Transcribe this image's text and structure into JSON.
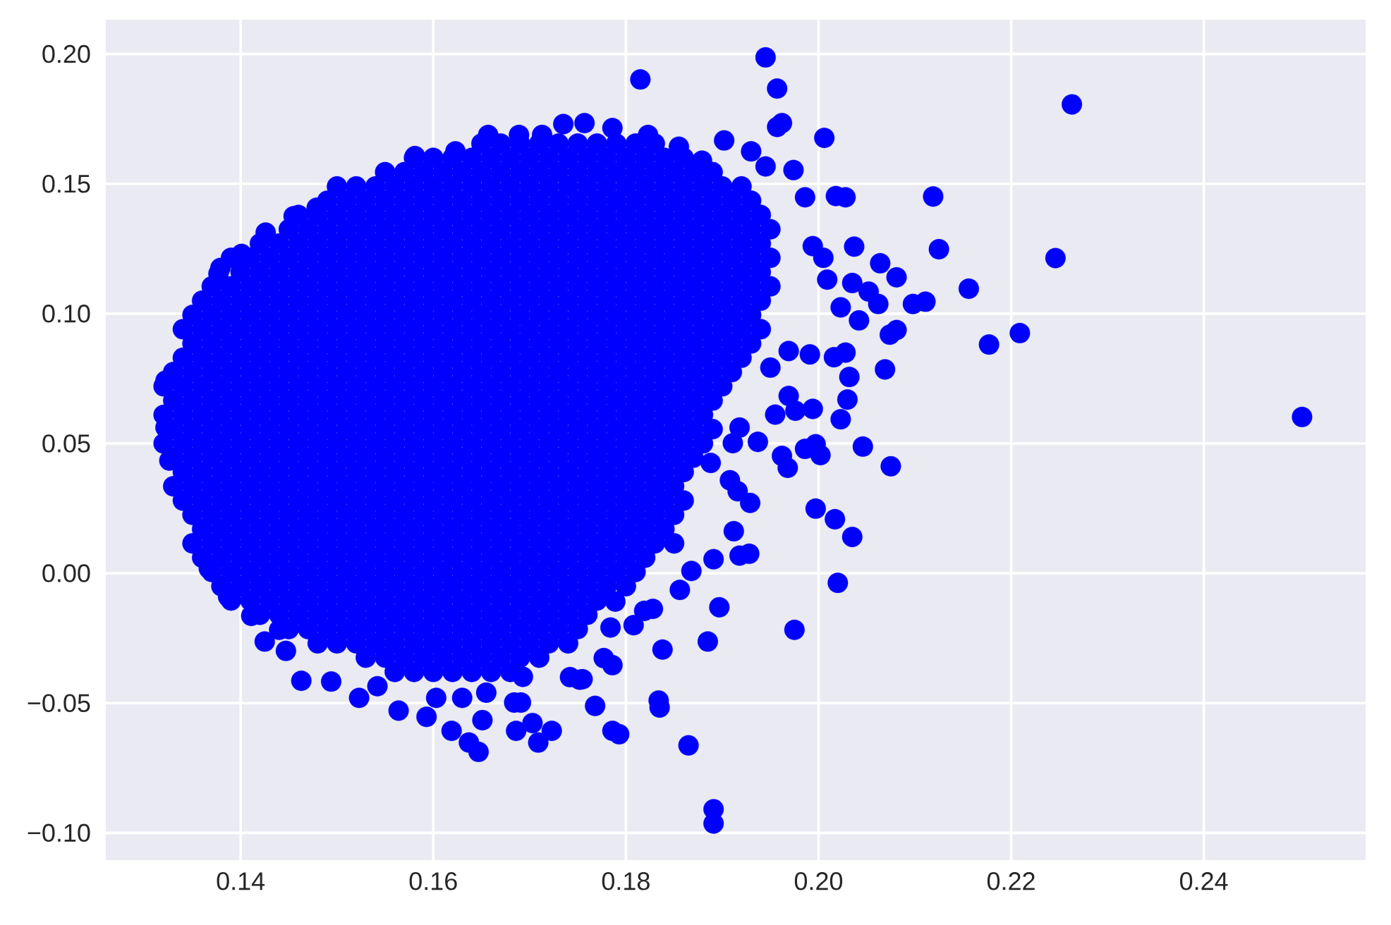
{
  "chart_data": {
    "type": "scatter",
    "color": "#0000ff",
    "marker": "circle",
    "grid": true,
    "xlim": [
      0.126,
      0.2568
    ],
    "ylim": [
      -0.1105,
      0.2132
    ],
    "xticks": [
      0.14,
      0.16,
      0.18,
      {
        "value": 0.2,
        "label": "0.20"
      },
      0.22,
      0.24
    ],
    "yticks": [
      {
        "value": -0.1,
        "label": "−0.10"
      },
      {
        "value": -0.05,
        "label": "−0.05"
      },
      {
        "value": 0,
        "label": "0.00"
      },
      0.05,
      {
        "value": 0.1,
        "label": "0.10"
      },
      0.15,
      {
        "value": 0.2,
        "label": "0.20"
      }
    ],
    "x": [
      0.156,
      0.158,
      0.16,
      0.162,
      0.164,
      0.166,
      0.168,
      0.153,
      0.155,
      0.157,
      0.159,
      0.161,
      0.163,
      0.165,
      0.167,
      0.169,
      0.171,
      0.148,
      0.15,
      0.152,
      0.154,
      0.156,
      0.158,
      0.16,
      0.162,
      0.164,
      0.166,
      0.168,
      0.17,
      0.172,
      0.174,
      0.145,
      0.147,
      0.149,
      0.151,
      0.153,
      0.155,
      0.157,
      0.159,
      0.161,
      0.163,
      0.165,
      0.167,
      0.169,
      0.171,
      0.173,
      0.175,
      0.142,
      0.144,
      0.146,
      0.148,
      0.15,
      0.152,
      0.154,
      0.156,
      0.158,
      0.16,
      0.162,
      0.164,
      0.166,
      0.168,
      0.17,
      0.172,
      0.174,
      0.176,
      0.139,
      0.141,
      0.143,
      0.145,
      0.147,
      0.149,
      0.151,
      0.153,
      0.155,
      0.157,
      0.159,
      0.161,
      0.163,
      0.165,
      0.167,
      0.169,
      0.171,
      0.173,
      0.175,
      0.177,
      0.138,
      0.14,
      0.142,
      0.144,
      0.146,
      0.148,
      0.15,
      0.152,
      0.154,
      0.156,
      0.158,
      0.16,
      0.162,
      0.164,
      0.166,
      0.168,
      0.17,
      0.172,
      0.174,
      0.176,
      0.178,
      0.18,
      0.137,
      0.139,
      0.141,
      0.143,
      0.145,
      0.147,
      0.149,
      0.151,
      0.153,
      0.155,
      0.157,
      0.159,
      0.161,
      0.163,
      0.165,
      0.167,
      0.169,
      0.171,
      0.173,
      0.175,
      0.177,
      0.179,
      0.181,
      0.136,
      0.138,
      0.14,
      0.142,
      0.144,
      0.146,
      0.148,
      0.15,
      0.152,
      0.154,
      0.156,
      0.158,
      0.16,
      0.162,
      0.164,
      0.166,
      0.168,
      0.17,
      0.172,
      0.174,
      0.176,
      0.178,
      0.18,
      0.182,
      0.135,
      0.137,
      0.139,
      0.141,
      0.143,
      0.145,
      0.147,
      0.149,
      0.151,
      0.153,
      0.155,
      0.157,
      0.159,
      0.161,
      0.163,
      0.165,
      0.167,
      0.169,
      0.171,
      0.173,
      0.175,
      0.177,
      0.179,
      0.181,
      0.183,
      0.185,
      0.136,
      0.138,
      0.14,
      0.142,
      0.144,
      0.146,
      0.148,
      0.15,
      0.152,
      0.154,
      0.156,
      0.158,
      0.16,
      0.162,
      0.164,
      0.166,
      0.168,
      0.17,
      0.172,
      0.174,
      0.176,
      0.178,
      0.18,
      0.182,
      0.184,
      0.135,
      0.137,
      0.139,
      0.141,
      0.143,
      0.145,
      0.147,
      0.149,
      0.151,
      0.153,
      0.155,
      0.157,
      0.159,
      0.161,
      0.163,
      0.165,
      0.167,
      0.169,
      0.171,
      0.173,
      0.175,
      0.177,
      0.179,
      0.181,
      0.183,
      0.185,
      0.134,
      0.136,
      0.138,
      0.14,
      0.142,
      0.144,
      0.146,
      0.148,
      0.15,
      0.152,
      0.154,
      0.156,
      0.158,
      0.16,
      0.162,
      0.164,
      0.166,
      0.168,
      0.17,
      0.172,
      0.174,
      0.176,
      0.178,
      0.18,
      0.182,
      0.184,
      0.186,
      0.133,
      0.135,
      0.137,
      0.139,
      0.141,
      0.143,
      0.145,
      0.147,
      0.149,
      0.151,
      0.153,
      0.155,
      0.157,
      0.159,
      0.161,
      0.163,
      0.165,
      0.167,
      0.169,
      0.171,
      0.173,
      0.175,
      0.177,
      0.179,
      0.181,
      0.183,
      0.185,
      0.134,
      0.136,
      0.138,
      0.14,
      0.142,
      0.144,
      0.146,
      0.148,
      0.15,
      0.152,
      0.154,
      0.156,
      0.158,
      0.16,
      0.162,
      0.164,
      0.166,
      0.168,
      0.17,
      0.172,
      0.174,
      0.176,
      0.178,
      0.18,
      0.182,
      0.184,
      0.186,
      0.133,
      0.135,
      0.137,
      0.139,
      0.141,
      0.143,
      0.145,
      0.147,
      0.149,
      0.151,
      0.153,
      0.155,
      0.157,
      0.159,
      0.161,
      0.163,
      0.165,
      0.167,
      0.169,
      0.171,
      0.173,
      0.175,
      0.177,
      0.179,
      0.181,
      0.183,
      0.185,
      0.187,
      0.132,
      0.134,
      0.136,
      0.138,
      0.14,
      0.142,
      0.144,
      0.146,
      0.148,
      0.15,
      0.152,
      0.154,
      0.156,
      0.158,
      0.16,
      0.162,
      0.164,
      0.166,
      0.168,
      0.17,
      0.172,
      0.174,
      0.176,
      0.178,
      0.18,
      0.182,
      0.184,
      0.186,
      0.188,
      0.133,
      0.135,
      0.137,
      0.139,
      0.141,
      0.143,
      0.145,
      0.147,
      0.149,
      0.151,
      0.153,
      0.155,
      0.157,
      0.159,
      0.161,
      0.163,
      0.165,
      0.167,
      0.169,
      0.171,
      0.173,
      0.175,
      0.177,
      0.179,
      0.181,
      0.183,
      0.185,
      0.187,
      0.189,
      0.132,
      0.134,
      0.136,
      0.138,
      0.14,
      0.142,
      0.144,
      0.146,
      0.148,
      0.15,
      0.152,
      0.154,
      0.156,
      0.158,
      0.16,
      0.162,
      0.164,
      0.166,
      0.168,
      0.17,
      0.172,
      0.174,
      0.176,
      0.178,
      0.18,
      0.182,
      0.184,
      0.186,
      0.188,
      0.133,
      0.135,
      0.137,
      0.139,
      0.141,
      0.143,
      0.145,
      0.147,
      0.149,
      0.151,
      0.153,
      0.155,
      0.157,
      0.159,
      0.161,
      0.163,
      0.165,
      0.167,
      0.169,
      0.171,
      0.173,
      0.175,
      0.177,
      0.179,
      0.181,
      0.183,
      0.185,
      0.187,
      0.189,
      0.132,
      0.134,
      0.136,
      0.138,
      0.14,
      0.142,
      0.144,
      0.146,
      0.148,
      0.15,
      0.152,
      0.154,
      0.156,
      0.158,
      0.16,
      0.162,
      0.164,
      0.166,
      0.168,
      0.17,
      0.172,
      0.174,
      0.176,
      0.178,
      0.18,
      0.182,
      0.184,
      0.186,
      0.188,
      0.19,
      0.133,
      0.135,
      0.137,
      0.139,
      0.141,
      0.143,
      0.145,
      0.147,
      0.149,
      0.151,
      0.153,
      0.155,
      0.157,
      0.159,
      0.161,
      0.163,
      0.165,
      0.167,
      0.169,
      0.171,
      0.173,
      0.175,
      0.177,
      0.179,
      0.181,
      0.183,
      0.185,
      0.187,
      0.189,
      0.191,
      0.134,
      0.136,
      0.138,
      0.14,
      0.142,
      0.144,
      0.146,
      0.148,
      0.15,
      0.152,
      0.154,
      0.156,
      0.158,
      0.16,
      0.162,
      0.164,
      0.166,
      0.168,
      0.17,
      0.172,
      0.174,
      0.176,
      0.178,
      0.18,
      0.182,
      0.184,
      0.186,
      0.188,
      0.19,
      0.192,
      0.135,
      0.137,
      0.139,
      0.141,
      0.143,
      0.145,
      0.147,
      0.149,
      0.151,
      0.153,
      0.155,
      0.157,
      0.159,
      0.161,
      0.163,
      0.165,
      0.167,
      0.169,
      0.171,
      0.173,
      0.175,
      0.177,
      0.179,
      0.181,
      0.183,
      0.185,
      0.187,
      0.189,
      0.191,
      0.193,
      0.134,
      0.136,
      0.138,
      0.14,
      0.142,
      0.144,
      0.146,
      0.148,
      0.15,
      0.152,
      0.154,
      0.156,
      0.158,
      0.16,
      0.162,
      0.164,
      0.166,
      0.168,
      0.17,
      0.172,
      0.174,
      0.176,
      0.178,
      0.18,
      0.182,
      0.184,
      0.186,
      0.188,
      0.19,
      0.192,
      0.194,
      0.135,
      0.137,
      0.139,
      0.141,
      0.143,
      0.145,
      0.147,
      0.149,
      0.151,
      0.153,
      0.155,
      0.157,
      0.159,
      0.161,
      0.163,
      0.165,
      0.167,
      0.169,
      0.171,
      0.173,
      0.175,
      0.177,
      0.179,
      0.181,
      0.183,
      0.185,
      0.187,
      0.189,
      0.191,
      0.193,
      0.136,
      0.138,
      0.14,
      0.142,
      0.144,
      0.146,
      0.148,
      0.15,
      0.152,
      0.154,
      0.156,
      0.158,
      0.16,
      0.162,
      0.164,
      0.166,
      0.168,
      0.17,
      0.172,
      0.174,
      0.176,
      0.178,
      0.18,
      0.182,
      0.184,
      0.186,
      0.188,
      0.19,
      0.192,
      0.194,
      0.137,
      0.139,
      0.141,
      0.143,
      0.145,
      0.147,
      0.149,
      0.151,
      0.153,
      0.155,
      0.157,
      0.159,
      0.161,
      0.163,
      0.165,
      0.167,
      0.169,
      0.171,
      0.173,
      0.175,
      0.177,
      0.179,
      0.181,
      0.183,
      0.185,
      0.187,
      0.189,
      0.191,
      0.193,
      0.195,
      0.14,
      0.142,
      0.144,
      0.146,
      0.148,
      0.15,
      0.152,
      0.154,
      0.156,
      0.158,
      0.16,
      0.162,
      0.164,
      0.166,
      0.168,
      0.17,
      0.172,
      0.174,
      0.176,
      0.178,
      0.18,
      0.182,
      0.184,
      0.186,
      0.188,
      0.19,
      0.192,
      0.194,
      0.139,
      0.141,
      0.143,
      0.145,
      0.147,
      0.149,
      0.151,
      0.153,
      0.155,
      0.157,
      0.159,
      0.161,
      0.163,
      0.165,
      0.167,
      0.169,
      0.171,
      0.173,
      0.175,
      0.177,
      0.179,
      0.181,
      0.183,
      0.185,
      0.187,
      0.189,
      0.191,
      0.193,
      0.195,
      0.142,
      0.144,
      0.146,
      0.148,
      0.15,
      0.152,
      0.154,
      0.156,
      0.158,
      0.16,
      0.162,
      0.164,
      0.166,
      0.168,
      0.17,
      0.172,
      0.174,
      0.176,
      0.178,
      0.18,
      0.182,
      0.184,
      0.186,
      0.188,
      0.19,
      0.192,
      0.194,
      0.145,
      0.147,
      0.149,
      0.151,
      0.153,
      0.155,
      0.157,
      0.159,
      0.161,
      0.163,
      0.165,
      0.167,
      0.169,
      0.171,
      0.173,
      0.175,
      0.177,
      0.179,
      0.181,
      0.183,
      0.185,
      0.187,
      0.189,
      0.191,
      0.193,
      0.195,
      0.146,
      0.148,
      0.15,
      0.152,
      0.154,
      0.156,
      0.158,
      0.16,
      0.162,
      0.164,
      0.166,
      0.168,
      0.17,
      0.172,
      0.174,
      0.176,
      0.178,
      0.18,
      0.182,
      0.184,
      0.186,
      0.188,
      0.19,
      0.192,
      0.194,
      0.149,
      0.151,
      0.153,
      0.155,
      0.157,
      0.159,
      0.161,
      0.163,
      0.165,
      0.167,
      0.169,
      0.171,
      0.173,
      0.175,
      0.177,
      0.179,
      0.181,
      0.183,
      0.185,
      0.187,
      0.189,
      0.191,
      0.193,
      0.15,
      0.152,
      0.154,
      0.156,
      0.158,
      0.16,
      0.162,
      0.164,
      0.166,
      0.168,
      0.17,
      0.172,
      0.174,
      0.176,
      0.178,
      0.18,
      0.182,
      0.184,
      0.186,
      0.188,
      0.19,
      0.192,
      0.155,
      0.157,
      0.159,
      0.161,
      0.163,
      0.165,
      0.167,
      0.169,
      0.171,
      0.173,
      0.175,
      0.177,
      0.179,
      0.181,
      0.183,
      0.185,
      0.187,
      0.189,
      0.158,
      0.16,
      0.162,
      0.164,
      0.166,
      0.168,
      0.17,
      0.172,
      0.174,
      0.176,
      0.178,
      0.18,
      0.182,
      0.184,
      0.186,
      0.165,
      0.167,
      0.169,
      0.171,
      0.173,
      0.175,
      0.177,
      0.179,
      0.181,
      0.183,
      0.1945,
      0.1815,
      0.1957,
      0.1957,
      0.1962,
      0.2006,
      0.2263,
      0.1902,
      0.1974,
      0.1945,
      0.1986,
      0.2018,
      0.2028,
      0.2119,
      0.2125,
      0.2246,
      0.2037,
      0.2064,
      0.2081,
      0.2009,
      0.2035,
      0.2052,
      0.2098,
      0.2111,
      0.2156,
      0.2023,
      0.2062,
      0.2042,
      0.2081,
      0.2074,
      0.2209,
      0.2177,
      0.2069,
      0.1991,
      0.2016,
      0.2028,
      0.2032,
      0.203,
      0.2023,
      0.2502,
      0.1994,
      0.1976,
      0.1955,
      0.1969,
      0.1969,
      0.195,
      0.2046,
      0.2075,
      0.1962,
      0.1968,
      0.1986,
      0.1997,
      0.2002,
      0.1937,
      0.1918,
      0.1911,
      0.1888,
      0.1908,
      0.1916,
      0.1929,
      0.1997,
      0.2017,
      0.2035,
      0.202,
      0.1912,
      0.1891,
      0.1918,
      0.1928,
      0.1868,
      0.1856,
      0.1897,
      0.1975,
      0.1885,
      0.1838,
      0.1819,
      0.1828,
      0.1808,
      0.1784,
      0.1789,
      0.1777,
      0.1786,
      0.1755,
      0.1768,
      0.1834,
      0.1835,
      0.1786,
      0.1793,
      0.1865,
      0.1891,
      0.1891,
      0.1723,
      0.1709,
      0.1703,
      0.1686,
      0.1684,
      0.1691,
      0.1693,
      0.1651,
      0.1647,
      0.1637,
      0.1619,
      0.1593,
      0.1564,
      0.1523,
      0.1494,
      0.1463,
      0.1447,
      0.1425,
      0.1742,
      0.1752,
      0.1603,
      0.163,
      0.1655,
      0.1542,
      0.1757,
      0.1735,
      0.1786,
      0.1823,
      0.1855,
      0.1879,
      0.193,
      0.1713,
      0.1689,
      0.1657,
      0.1623,
      0.1581,
      0.1479,
      0.1377,
      0.1322,
      0.1322,
      0.1326,
      0.1367,
      0.1387,
      0.1411,
      0.144,
      0.1379,
      0.1401,
      0.1426,
      0.1455,
      0.1994,
      0.2005
    ],
    "values": [
      -0.038,
      -0.038,
      -0.038,
      -0.038,
      -0.038,
      -0.038,
      -0.038,
      -0.0325,
      -0.0325,
      -0.0325,
      -0.0325,
      -0.0325,
      -0.0325,
      -0.0325,
      -0.0325,
      -0.0325,
      -0.0325,
      -0.027,
      -0.027,
      -0.027,
      -0.027,
      -0.027,
      -0.027,
      -0.027,
      -0.027,
      -0.027,
      -0.027,
      -0.027,
      -0.027,
      -0.027,
      -0.027,
      -0.0215,
      -0.0215,
      -0.0215,
      -0.0215,
      -0.0215,
      -0.0215,
      -0.0215,
      -0.0215,
      -0.0215,
      -0.0215,
      -0.0215,
      -0.0215,
      -0.0215,
      -0.0215,
      -0.0215,
      -0.0215,
      -0.016,
      -0.016,
      -0.016,
      -0.016,
      -0.016,
      -0.016,
      -0.016,
      -0.016,
      -0.016,
      -0.016,
      -0.016,
      -0.016,
      -0.016,
      -0.016,
      -0.016,
      -0.016,
      -0.016,
      -0.016,
      -0.0105,
      -0.0105,
      -0.0105,
      -0.0105,
      -0.0105,
      -0.0105,
      -0.0105,
      -0.0105,
      -0.0105,
      -0.0105,
      -0.0105,
      -0.0105,
      -0.0105,
      -0.0105,
      -0.0105,
      -0.0105,
      -0.0105,
      -0.0105,
      -0.0105,
      -0.0105,
      -0.005,
      -0.005,
      -0.005,
      -0.005,
      -0.005,
      -0.005,
      -0.005,
      -0.005,
      -0.005,
      -0.005,
      -0.005,
      -0.005,
      -0.005,
      -0.005,
      -0.005,
      -0.005,
      -0.005,
      -0.005,
      -0.005,
      -0.005,
      -0.005,
      -0.005,
      0.0005,
      0.0005,
      0.0005,
      0.0005,
      0.0005,
      0.0005,
      0.0005,
      0.0005,
      0.0005,
      0.0005,
      0.0005,
      0.0005,
      0.0005,
      0.0005,
      0.0005,
      0.0005,
      0.0005,
      0.0005,
      0.0005,
      0.0005,
      0.0005,
      0.0005,
      0.0005,
      0.006,
      0.006,
      0.006,
      0.006,
      0.006,
      0.006,
      0.006,
      0.006,
      0.006,
      0.006,
      0.006,
      0.006,
      0.006,
      0.006,
      0.006,
      0.006,
      0.006,
      0.006,
      0.006,
      0.006,
      0.006,
      0.006,
      0.006,
      0.006,
      0.0115,
      0.0115,
      0.0115,
      0.0115,
      0.0115,
      0.0115,
      0.0115,
      0.0115,
      0.0115,
      0.0115,
      0.0115,
      0.0115,
      0.0115,
      0.0115,
      0.0115,
      0.0115,
      0.0115,
      0.0115,
      0.0115,
      0.0115,
      0.0115,
      0.0115,
      0.0115,
      0.0115,
      0.0115,
      0.0115,
      0.017,
      0.017,
      0.017,
      0.017,
      0.017,
      0.017,
      0.017,
      0.017,
      0.017,
      0.017,
      0.017,
      0.017,
      0.017,
      0.017,
      0.017,
      0.017,
      0.017,
      0.017,
      0.017,
      0.017,
      0.017,
      0.017,
      0.017,
      0.017,
      0.017,
      0.0225,
      0.0225,
      0.0225,
      0.0225,
      0.0225,
      0.0225,
      0.0225,
      0.0225,
      0.0225,
      0.0225,
      0.0225,
      0.0225,
      0.0225,
      0.0225,
      0.0225,
      0.0225,
      0.0225,
      0.0225,
      0.0225,
      0.0225,
      0.0225,
      0.0225,
      0.0225,
      0.0225,
      0.0225,
      0.0225,
      0.028,
      0.028,
      0.028,
      0.028,
      0.028,
      0.028,
      0.028,
      0.028,
      0.028,
      0.028,
      0.028,
      0.028,
      0.028,
      0.028,
      0.028,
      0.028,
      0.028,
      0.028,
      0.028,
      0.028,
      0.028,
      0.028,
      0.028,
      0.028,
      0.028,
      0.028,
      0.028,
      0.0335,
      0.0335,
      0.0335,
      0.0335,
      0.0335,
      0.0335,
      0.0335,
      0.0335,
      0.0335,
      0.0335,
      0.0335,
      0.0335,
      0.0335,
      0.0335,
      0.0335,
      0.0335,
      0.0335,
      0.0335,
      0.0335,
      0.0335,
      0.0335,
      0.0335,
      0.0335,
      0.0335,
      0.0335,
      0.0335,
      0.0335,
      0.039,
      0.039,
      0.039,
      0.039,
      0.039,
      0.039,
      0.039,
      0.039,
      0.039,
      0.039,
      0.039,
      0.039,
      0.039,
      0.039,
      0.039,
      0.039,
      0.039,
      0.039,
      0.039,
      0.039,
      0.039,
      0.039,
      0.039,
      0.039,
      0.039,
      0.039,
      0.039,
      0.0445,
      0.0445,
      0.0445,
      0.0445,
      0.0445,
      0.0445,
      0.0445,
      0.0445,
      0.0445,
      0.0445,
      0.0445,
      0.0445,
      0.0445,
      0.0445,
      0.0445,
      0.0445,
      0.0445,
      0.0445,
      0.0445,
      0.0445,
      0.0445,
      0.0445,
      0.0445,
      0.0445,
      0.0445,
      0.0445,
      0.0445,
      0.0445,
      0.05,
      0.05,
      0.05,
      0.05,
      0.05,
      0.05,
      0.05,
      0.05,
      0.05,
      0.05,
      0.05,
      0.05,
      0.05,
      0.05,
      0.05,
      0.05,
      0.05,
      0.05,
      0.05,
      0.05,
      0.05,
      0.05,
      0.05,
      0.05,
      0.05,
      0.05,
      0.05,
      0.05,
      0.05,
      0.0555,
      0.0555,
      0.0555,
      0.0555,
      0.0555,
      0.0555,
      0.0555,
      0.0555,
      0.0555,
      0.0555,
      0.0555,
      0.0555,
      0.0555,
      0.0555,
      0.0555,
      0.0555,
      0.0555,
      0.0555,
      0.0555,
      0.0555,
      0.0555,
      0.0555,
      0.0555,
      0.0555,
      0.0555,
      0.0555,
      0.0555,
      0.0555,
      0.0555,
      0.061,
      0.061,
      0.061,
      0.061,
      0.061,
      0.061,
      0.061,
      0.061,
      0.061,
      0.061,
      0.061,
      0.061,
      0.061,
      0.061,
      0.061,
      0.061,
      0.061,
      0.061,
      0.061,
      0.061,
      0.061,
      0.061,
      0.061,
      0.061,
      0.061,
      0.061,
      0.061,
      0.061,
      0.061,
      0.0665,
      0.0665,
      0.0665,
      0.0665,
      0.0665,
      0.0665,
      0.0665,
      0.0665,
      0.0665,
      0.0665,
      0.0665,
      0.0665,
      0.0665,
      0.0665,
      0.0665,
      0.0665,
      0.0665,
      0.0665,
      0.0665,
      0.0665,
      0.0665,
      0.0665,
      0.0665,
      0.0665,
      0.0665,
      0.0665,
      0.0665,
      0.0665,
      0.0665,
      0.072,
      0.072,
      0.072,
      0.072,
      0.072,
      0.072,
      0.072,
      0.072,
      0.072,
      0.072,
      0.072,
      0.072,
      0.072,
      0.072,
      0.072,
      0.072,
      0.072,
      0.072,
      0.072,
      0.072,
      0.072,
      0.072,
      0.072,
      0.072,
      0.072,
      0.072,
      0.072,
      0.072,
      0.072,
      0.072,
      0.0775,
      0.0775,
      0.0775,
      0.0775,
      0.0775,
      0.0775,
      0.0775,
      0.0775,
      0.0775,
      0.0775,
      0.0775,
      0.0775,
      0.0775,
      0.0775,
      0.0775,
      0.0775,
      0.0775,
      0.0775,
      0.0775,
      0.0775,
      0.0775,
      0.0775,
      0.0775,
      0.0775,
      0.0775,
      0.0775,
      0.0775,
      0.0775,
      0.0775,
      0.0775,
      0.083,
      0.083,
      0.083,
      0.083,
      0.083,
      0.083,
      0.083,
      0.083,
      0.083,
      0.083,
      0.083,
      0.083,
      0.083,
      0.083,
      0.083,
      0.083,
      0.083,
      0.083,
      0.083,
      0.083,
      0.083,
      0.083,
      0.083,
      0.083,
      0.083,
      0.083,
      0.083,
      0.083,
      0.083,
      0.083,
      0.0885,
      0.0885,
      0.0885,
      0.0885,
      0.0885,
      0.0885,
      0.0885,
      0.0885,
      0.0885,
      0.0885,
      0.0885,
      0.0885,
      0.0885,
      0.0885,
      0.0885,
      0.0885,
      0.0885,
      0.0885,
      0.0885,
      0.0885,
      0.0885,
      0.0885,
      0.0885,
      0.0885,
      0.0885,
      0.0885,
      0.0885,
      0.0885,
      0.0885,
      0.0885,
      0.094,
      0.094,
      0.094,
      0.094,
      0.094,
      0.094,
      0.094,
      0.094,
      0.094,
      0.094,
      0.094,
      0.094,
      0.094,
      0.094,
      0.094,
      0.094,
      0.094,
      0.094,
      0.094,
      0.094,
      0.094,
      0.094,
      0.094,
      0.094,
      0.094,
      0.094,
      0.094,
      0.094,
      0.094,
      0.094,
      0.094,
      0.0995,
      0.0995,
      0.0995,
      0.0995,
      0.0995,
      0.0995,
      0.0995,
      0.0995,
      0.0995,
      0.0995,
      0.0995,
      0.0995,
      0.0995,
      0.0995,
      0.0995,
      0.0995,
      0.0995,
      0.0995,
      0.0995,
      0.0995,
      0.0995,
      0.0995,
      0.0995,
      0.0995,
      0.0995,
      0.0995,
      0.0995,
      0.0995,
      0.0995,
      0.0995,
      0.105,
      0.105,
      0.105,
      0.105,
      0.105,
      0.105,
      0.105,
      0.105,
      0.105,
      0.105,
      0.105,
      0.105,
      0.105,
      0.105,
      0.105,
      0.105,
      0.105,
      0.105,
      0.105,
      0.105,
      0.105,
      0.105,
      0.105,
      0.105,
      0.105,
      0.105,
      0.105,
      0.105,
      0.105,
      0.105,
      0.1105,
      0.1105,
      0.1105,
      0.1105,
      0.1105,
      0.1105,
      0.1105,
      0.1105,
      0.1105,
      0.1105,
      0.1105,
      0.1105,
      0.1105,
      0.1105,
      0.1105,
      0.1105,
      0.1105,
      0.1105,
      0.1105,
      0.1105,
      0.1105,
      0.1105,
      0.1105,
      0.1105,
      0.1105,
      0.1105,
      0.1105,
      0.1105,
      0.1105,
      0.1105,
      0.116,
      0.116,
      0.116,
      0.116,
      0.116,
      0.116,
      0.116,
      0.116,
      0.116,
      0.116,
      0.116,
      0.116,
      0.116,
      0.116,
      0.116,
      0.116,
      0.116,
      0.116,
      0.116,
      0.116,
      0.116,
      0.116,
      0.116,
      0.116,
      0.116,
      0.116,
      0.116,
      0.116,
      0.1215,
      0.1215,
      0.1215,
      0.1215,
      0.1215,
      0.1215,
      0.1215,
      0.1215,
      0.1215,
      0.1215,
      0.1215,
      0.1215,
      0.1215,
      0.1215,
      0.1215,
      0.1215,
      0.1215,
      0.1215,
      0.1215,
      0.1215,
      0.1215,
      0.1215,
      0.1215,
      0.1215,
      0.1215,
      0.1215,
      0.1215,
      0.1215,
      0.1215,
      0.127,
      0.127,
      0.127,
      0.127,
      0.127,
      0.127,
      0.127,
      0.127,
      0.127,
      0.127,
      0.127,
      0.127,
      0.127,
      0.127,
      0.127,
      0.127,
      0.127,
      0.127,
      0.127,
      0.127,
      0.127,
      0.127,
      0.127,
      0.127,
      0.127,
      0.127,
      0.127,
      0.1325,
      0.1325,
      0.1325,
      0.1325,
      0.1325,
      0.1325,
      0.1325,
      0.1325,
      0.1325,
      0.1325,
      0.1325,
      0.1325,
      0.1325,
      0.1325,
      0.1325,
      0.1325,
      0.1325,
      0.1325,
      0.1325,
      0.1325,
      0.1325,
      0.1325,
      0.1325,
      0.1325,
      0.1325,
      0.1325,
      0.138,
      0.138,
      0.138,
      0.138,
      0.138,
      0.138,
      0.138,
      0.138,
      0.138,
      0.138,
      0.138,
      0.138,
      0.138,
      0.138,
      0.138,
      0.138,
      0.138,
      0.138,
      0.138,
      0.138,
      0.138,
      0.138,
      0.138,
      0.138,
      0.138,
      0.1435,
      0.1435,
      0.1435,
      0.1435,
      0.1435,
      0.1435,
      0.1435,
      0.1435,
      0.1435,
      0.1435,
      0.1435,
      0.1435,
      0.1435,
      0.1435,
      0.1435,
      0.1435,
      0.1435,
      0.1435,
      0.1435,
      0.1435,
      0.1435,
      0.1435,
      0.1435,
      0.149,
      0.149,
      0.149,
      0.149,
      0.149,
      0.149,
      0.149,
      0.149,
      0.149,
      0.149,
      0.149,
      0.149,
      0.149,
      0.149,
      0.149,
      0.149,
      0.149,
      0.149,
      0.149,
      0.149,
      0.149,
      0.149,
      0.1545,
      0.1545,
      0.1545,
      0.1545,
      0.1545,
      0.1545,
      0.1545,
      0.1545,
      0.1545,
      0.1545,
      0.1545,
      0.1545,
      0.1545,
      0.1545,
      0.1545,
      0.1545,
      0.1545,
      0.1545,
      0.16,
      0.16,
      0.16,
      0.16,
      0.16,
      0.16,
      0.16,
      0.16,
      0.16,
      0.16,
      0.16,
      0.16,
      0.16,
      0.16,
      0.16,
      0.1655,
      0.1655,
      0.1655,
      0.1655,
      0.1655,
      0.1655,
      0.1655,
      0.1655,
      0.1655,
      0.1655,
      0.1987,
      0.1902,
      0.1867,
      0.1719,
      0.1734,
      0.1677,
      0.1806,
      0.1667,
      0.1553,
      0.1567,
      0.1448,
      0.1453,
      0.1448,
      0.1451,
      0.1248,
      0.1214,
      0.1258,
      0.1194,
      0.114,
      0.1131,
      0.1118,
      0.1085,
      0.1037,
      0.1046,
      0.1096,
      0.1024,
      0.1037,
      0.0974,
      0.0937,
      0.0919,
      0.0925,
      0.0881,
      0.0785,
      0.0843,
      0.0832,
      0.085,
      0.0756,
      0.0669,
      0.0593,
      0.0602,
      0.0633,
      0.0626,
      0.0611,
      0.0683,
      0.0856,
      0.0792,
      0.0488,
      0.0412,
      0.0452,
      0.0406,
      0.0479,
      0.0497,
      0.0455,
      0.0506,
      0.0561,
      0.0501,
      0.0425,
      0.0358,
      0.0316,
      0.0271,
      0.0249,
      0.0208,
      0.014,
      -0.0037,
      0.0162,
      0.0054,
      0.0068,
      0.0075,
      0.0009,
      -0.0064,
      -0.0131,
      -0.0218,
      -0.0263,
      -0.0294,
      -0.0145,
      -0.0137,
      -0.02,
      -0.0209,
      -0.0109,
      -0.0327,
      -0.0354,
      -0.0408,
      -0.0511,
      -0.049,
      -0.0517,
      -0.0607,
      -0.062,
      -0.0663,
      -0.0909,
      -0.0964,
      -0.0607,
      -0.0652,
      -0.0577,
      -0.0607,
      -0.0498,
      -0.0498,
      -0.0399,
      -0.0566,
      -0.0688,
      -0.0652,
      -0.0607,
      -0.0553,
      -0.0529,
      -0.048,
      -0.0417,
      -0.0414,
      -0.0299,
      -0.0263,
      -0.04,
      -0.041,
      -0.048,
      -0.048,
      -0.046,
      -0.0435,
      0.1734,
      0.173,
      0.1715,
      0.1688,
      0.1643,
      0.1589,
      0.1625,
      0.1688,
      0.1688,
      0.1688,
      0.1625,
      0.1607,
      0.1408,
      0.1154,
      0.0742,
      0.0561,
      0.0434,
      0.0018,
      -0.0091,
      -0.0164,
      -0.0218,
      0.1176,
      0.123,
      0.1312,
      0.1375,
      0.126,
      0.1215
    ]
  }
}
